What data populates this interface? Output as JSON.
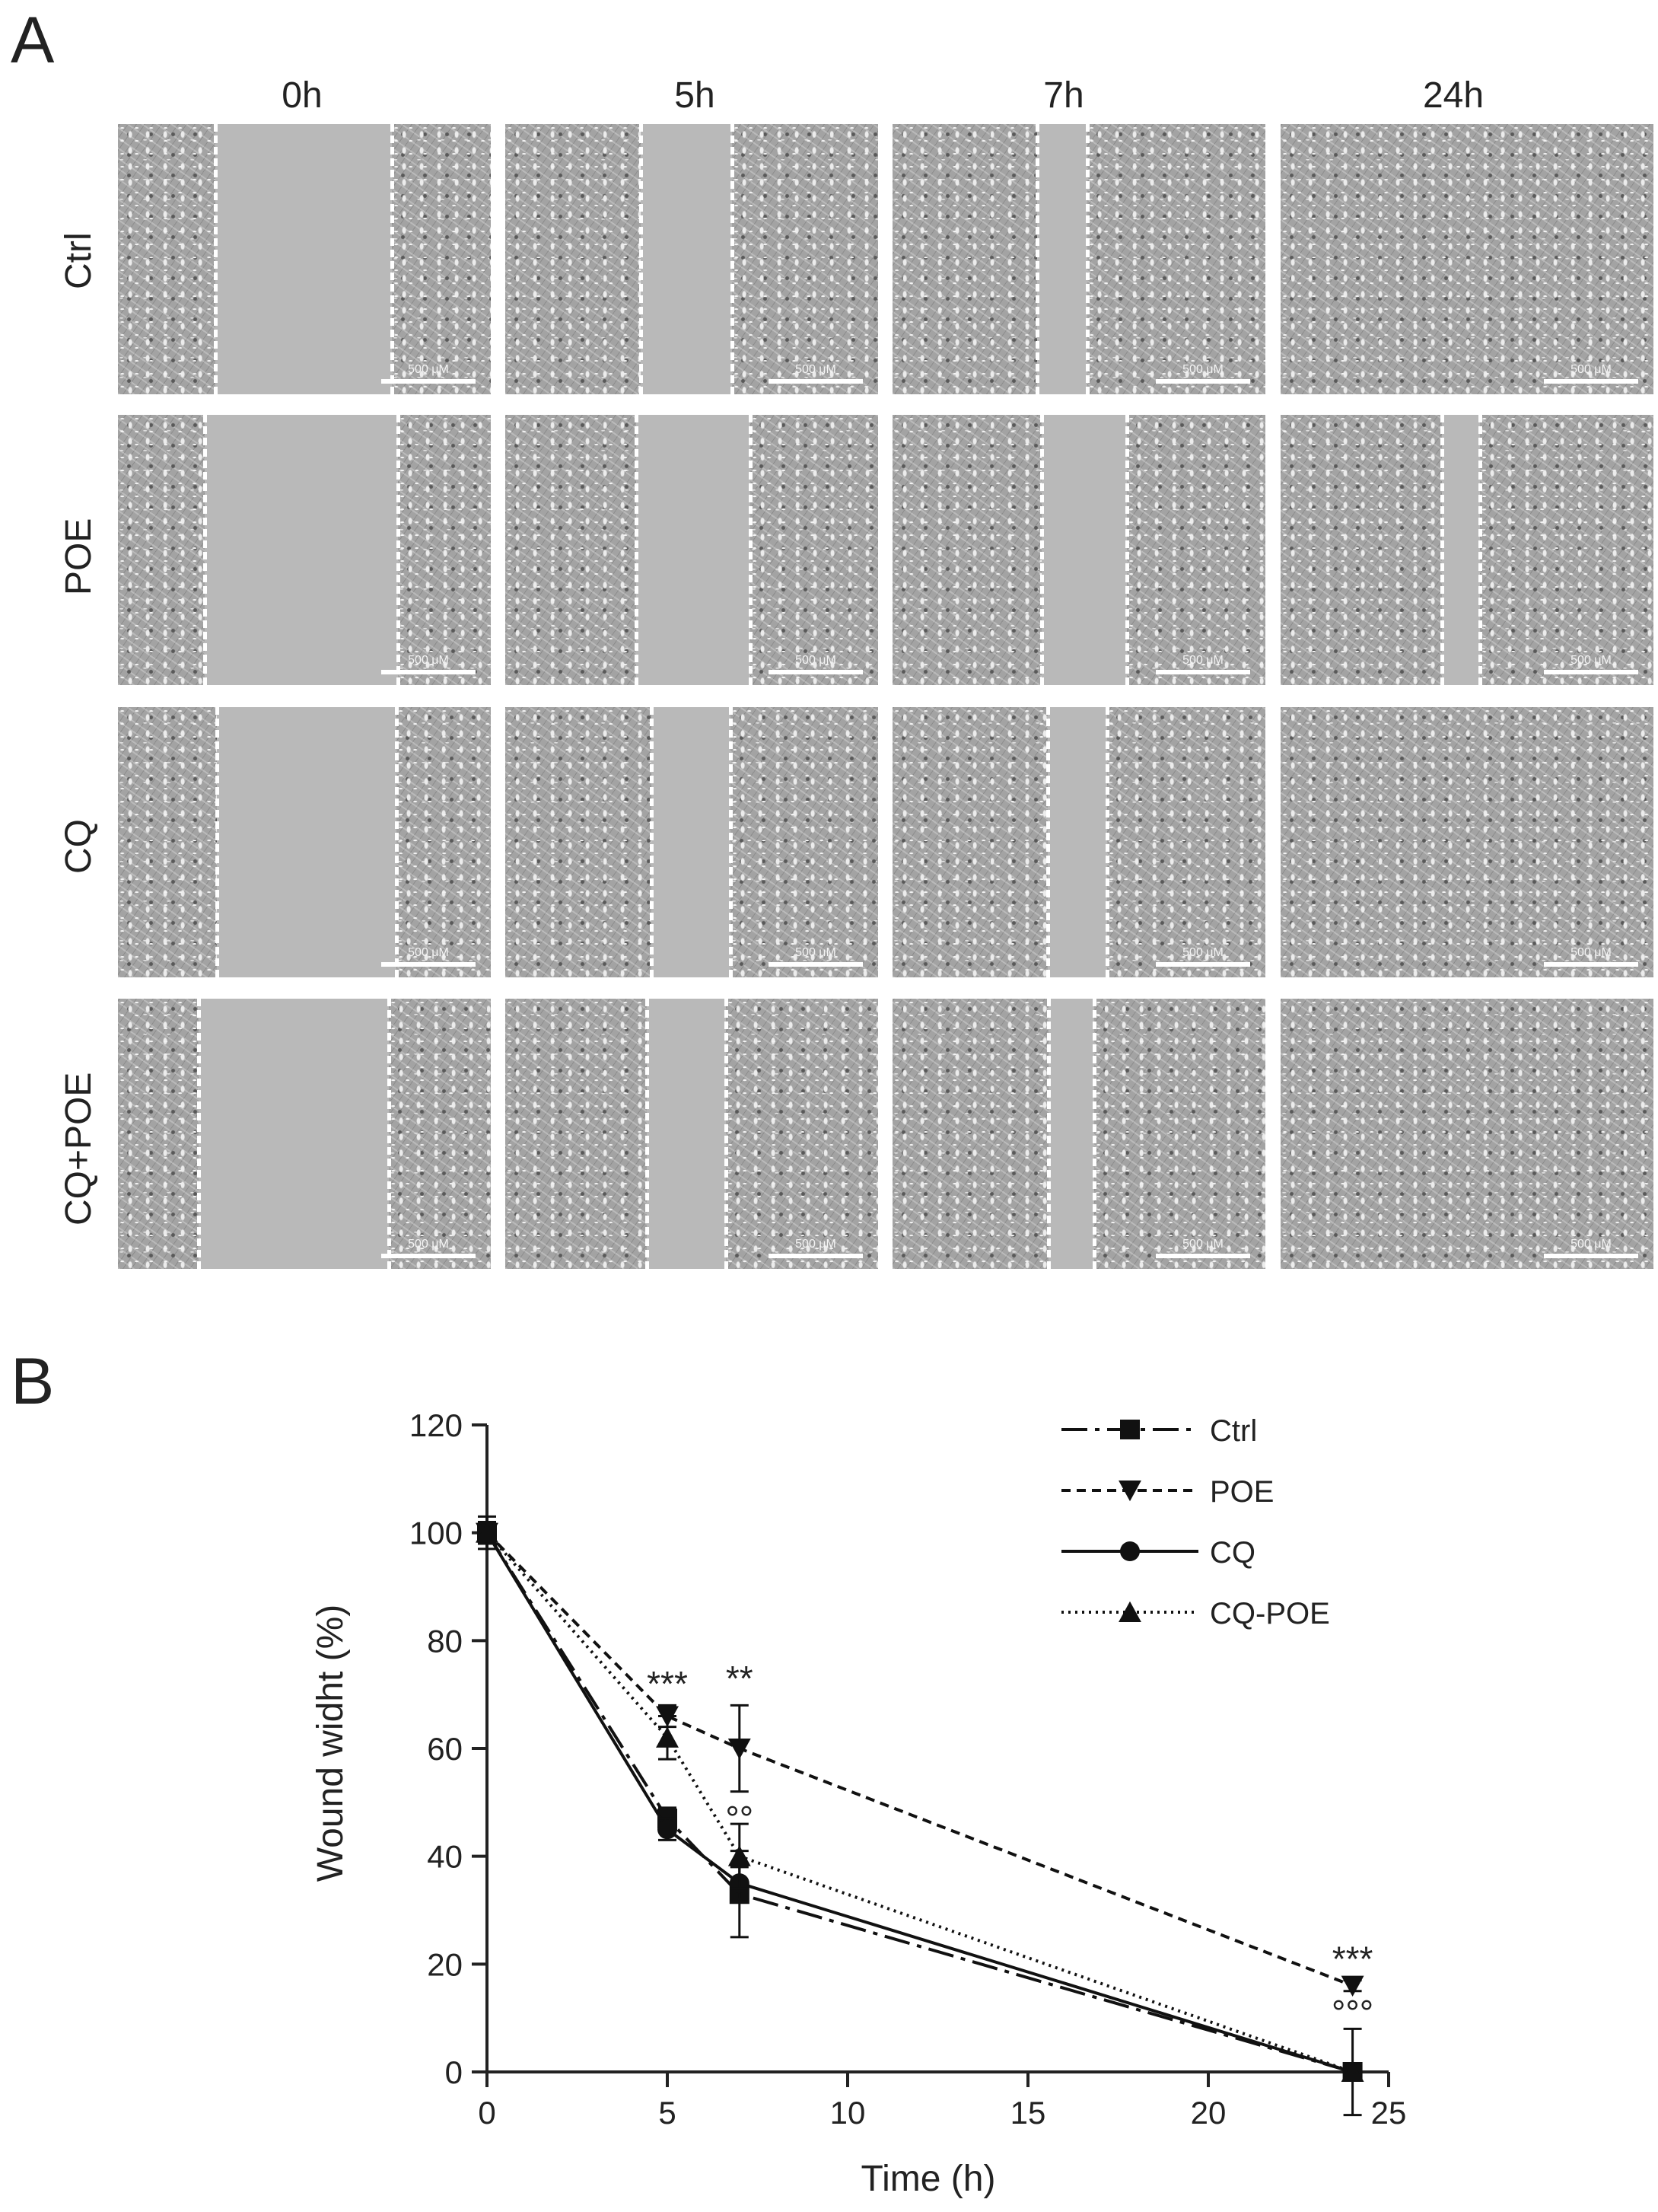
{
  "panel_a": {
    "letter": "A",
    "time_labels": [
      "0h",
      "5h",
      "7h",
      "24h"
    ],
    "conditions": [
      "Ctrl",
      "POE",
      "CQ",
      "CQ+POE"
    ],
    "scale_bar_label": "500 μM"
  },
  "panel_b": {
    "letter": "B"
  },
  "chart_data": {
    "type": "line",
    "xlabel": "Time (h)",
    "ylabel": "Wound widht (%)",
    "xlim": [
      0,
      25
    ],
    "ylim": [
      0,
      120
    ],
    "xticks": [
      0,
      5,
      10,
      15,
      20,
      25
    ],
    "yticks": [
      0,
      20,
      40,
      60,
      80,
      100,
      120
    ],
    "x": [
      0,
      5,
      7,
      24
    ],
    "legend_position": "top-right",
    "series": [
      {
        "name": "Ctrl",
        "values": [
          100,
          47,
          33,
          0
        ],
        "errors": [
          3,
          2,
          8,
          1
        ],
        "marker": "square",
        "line": "dash-dot"
      },
      {
        "name": "POE",
        "values": [
          100,
          66,
          60,
          16
        ],
        "errors": [
          2,
          2,
          8,
          1
        ],
        "marker": "triangle-down",
        "line": "dashed"
      },
      {
        "name": "CQ",
        "values": [
          100,
          45,
          35,
          0
        ],
        "errors": [
          2,
          2,
          3,
          1
        ],
        "marker": "circle",
        "line": "solid"
      },
      {
        "name": "CQ-POE",
        "values": [
          100,
          62,
          40,
          0
        ],
        "errors": [
          2,
          4,
          6,
          8
        ],
        "marker": "triangle-up",
        "line": "dotted"
      }
    ],
    "annotations": [
      {
        "x": 5,
        "y": 72,
        "text": "***"
      },
      {
        "x": 7,
        "y": 73,
        "text": "**"
      },
      {
        "x": 7,
        "y": 47,
        "text": "°°"
      },
      {
        "x": 24,
        "y": 21,
        "text": "***"
      },
      {
        "x": 24,
        "y": 11,
        "text": "°°°"
      }
    ]
  }
}
